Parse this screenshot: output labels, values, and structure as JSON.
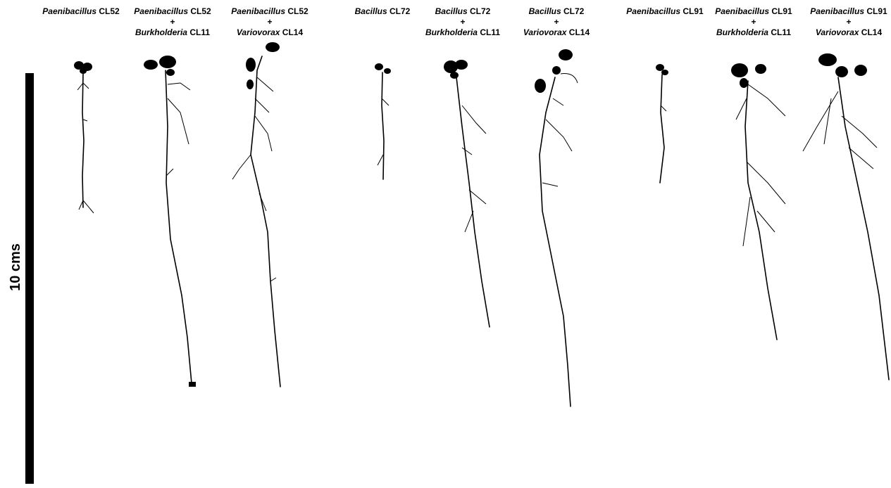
{
  "panels": [
    {
      "primary": {
        "genus": "Paenibacillus",
        "strain": "CL52"
      }
    },
    {
      "primary": {
        "genus": "Paenibacillus",
        "strain": "CL52"
      },
      "joiner": "+",
      "secondary": {
        "genus": "Burkholderia",
        "strain": "CL11"
      }
    },
    {
      "primary": {
        "genus": "Paenibacillus",
        "strain": "CL52"
      },
      "joiner": "+",
      "secondary": {
        "genus": "Variovorax",
        "strain": "CL14"
      }
    },
    {
      "primary": {
        "genus": "Bacillus",
        "strain": "CL72"
      }
    },
    {
      "primary": {
        "genus": "Bacillus",
        "strain": "CL72"
      },
      "joiner": "+",
      "secondary": {
        "genus": "Burkholderia",
        "strain": "CL11"
      }
    },
    {
      "primary": {
        "genus": "Bacillus",
        "strain": "CL72"
      },
      "joiner": "+",
      "secondary": {
        "genus": "Variovorax",
        "strain": "CL14"
      }
    },
    {
      "primary": {
        "genus": "Paenibacillus",
        "strain": "CL91"
      }
    },
    {
      "primary": {
        "genus": "Paenibacillus",
        "strain": "CL91"
      },
      "joiner": "+",
      "secondary": {
        "genus": "Burkholderia",
        "strain": "CL11"
      }
    },
    {
      "primary": {
        "genus": "Paenibacillus",
        "strain": "CL91"
      },
      "joiner": "+",
      "secondary": {
        "genus": "Variovorax",
        "strain": "CL14"
      }
    }
  ],
  "scale_bar": {
    "label": "10 cms"
  }
}
